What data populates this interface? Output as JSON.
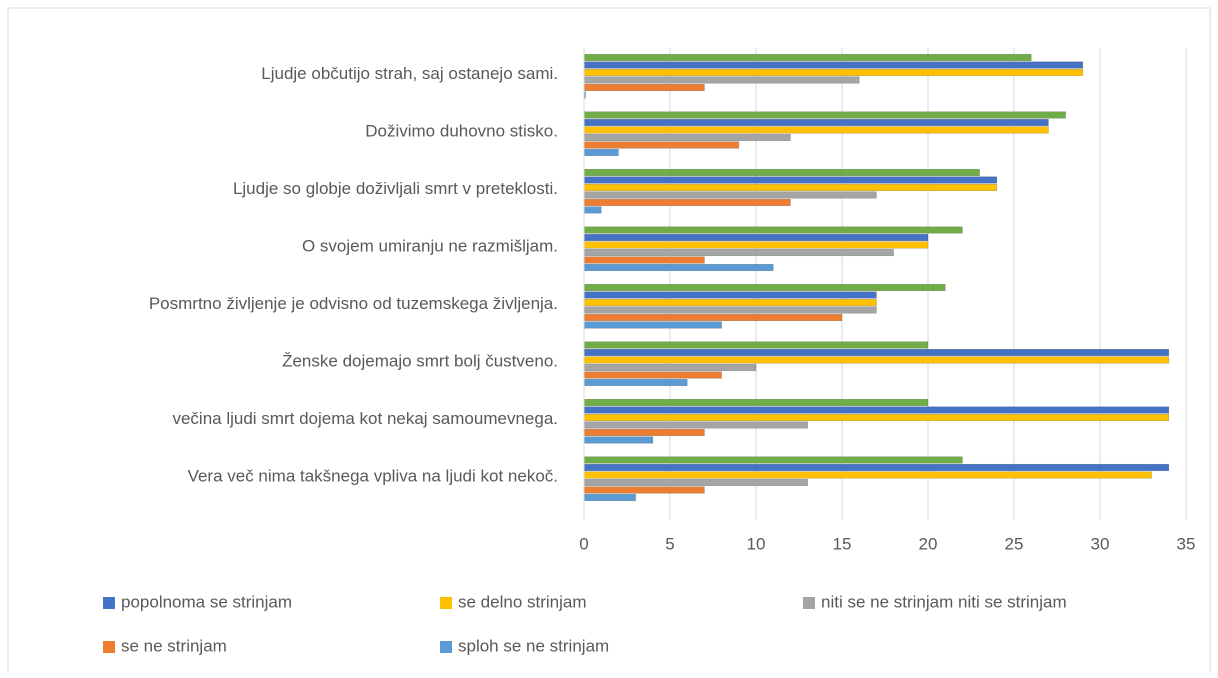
{
  "chart_data": {
    "type": "bar",
    "orientation": "horizontal",
    "categories": [
      "Ljudje občutijo strah, saj ostanejo sami.",
      "Doživimo duhovno stisko.",
      "Ljudje so globje doživljali smrt v preteklosti.",
      "O svojem umiranju ne razmišljam.",
      "Posmrtno življenje je odvisno od tuzemskega življenja.",
      "Ženske dojemajo smrt bolj čustveno.",
      "večina ljudi smrt dojema kot nekaj samoumevnega.",
      "Vera več nima takšnega vpliva na ljudi kot nekoč."
    ],
    "series": [
      {
        "name": null,
        "color": "#70ad47",
        "values": [
          26,
          28,
          23,
          22,
          21,
          20,
          20,
          22
        ]
      },
      {
        "name": "popolnoma se strinjam",
        "color": "#4472c4",
        "values": [
          29,
          27,
          24,
          20,
          17,
          34,
          34,
          34
        ]
      },
      {
        "name": "se delno strinjam",
        "color": "#ffc000",
        "values": [
          29,
          27,
          24,
          20,
          17,
          34,
          34,
          33
        ]
      },
      {
        "name": "niti se ne strinjam niti se strinjam",
        "color": "#a5a5a5",
        "values": [
          16,
          12,
          17,
          18,
          17,
          10,
          13,
          13
        ]
      },
      {
        "name": "se ne strinjam",
        "color": "#ed7d31",
        "values": [
          7,
          9,
          12,
          7,
          15,
          8,
          7,
          7
        ]
      },
      {
        "name": "sploh se ne strinjam",
        "color": "#5b9bd5",
        "values": [
          0,
          2,
          1,
          11,
          8,
          6,
          4,
          3
        ]
      }
    ],
    "xlim": [
      0,
      35
    ],
    "xticks": [
      0,
      5,
      10,
      15,
      20,
      25,
      30,
      35
    ],
    "grid": true,
    "legend": "bottom"
  }
}
